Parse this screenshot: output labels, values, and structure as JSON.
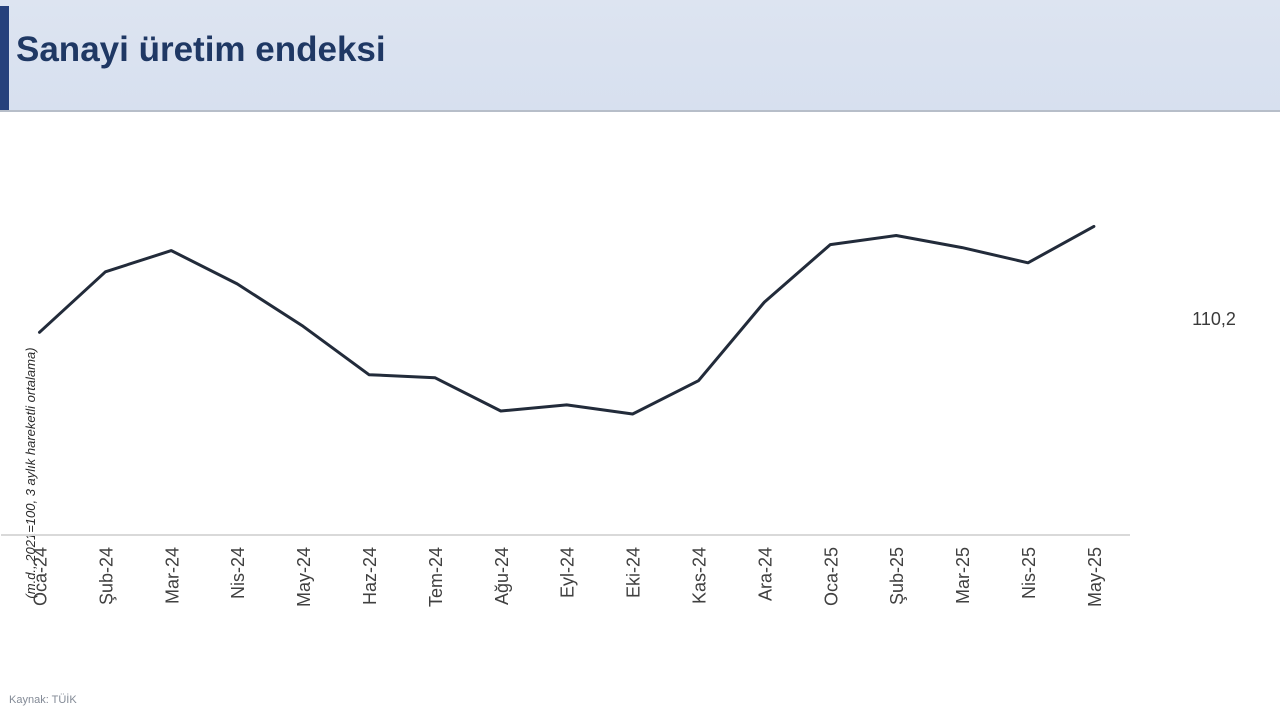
{
  "header": {
    "title": "Sanayi üretim endeksi"
  },
  "footer": {
    "source": "Kaynak: TÜİK"
  },
  "colors": {
    "header_background": "#dae2f0",
    "accent_bar": "#26417c",
    "title_text": "#1f3864",
    "line": "#222b3a",
    "tick_text": "#404040",
    "axis_line": "#d9d9d9"
  },
  "chart_data": {
    "type": "line",
    "title": "Sanayi üretim endeksi",
    "ylabel": "(m.d., 2021=100, 3 aylık hareketli ortalama)",
    "xlabel": "",
    "categories": [
      "Oca-24",
      "Şub-24",
      "Mar-24",
      "Nis-24",
      "May-24",
      "Haz-24",
      "Tem-24",
      "Ağu-24",
      "Eyl-24",
      "Eki-24",
      "Kas-24",
      "Ara-24",
      "Oca-25",
      "Şub-25",
      "Mar-25",
      "Nis-25",
      "May-25"
    ],
    "values": [
      106.7,
      108.7,
      109.4,
      108.3,
      106.9,
      105.3,
      105.2,
      104.1,
      104.3,
      104.0,
      105.1,
      107.7,
      109.6,
      109.9,
      109.5,
      109.0,
      110.2
    ],
    "ylim": [
      100,
      112
    ],
    "yticks": [
      100,
      102,
      104,
      106,
      108,
      110,
      112
    ],
    "grid": false,
    "legend_position": "none",
    "data_label": "110,2",
    "data_label_point": "May-25",
    "source": "Kaynak: TÜİK"
  }
}
